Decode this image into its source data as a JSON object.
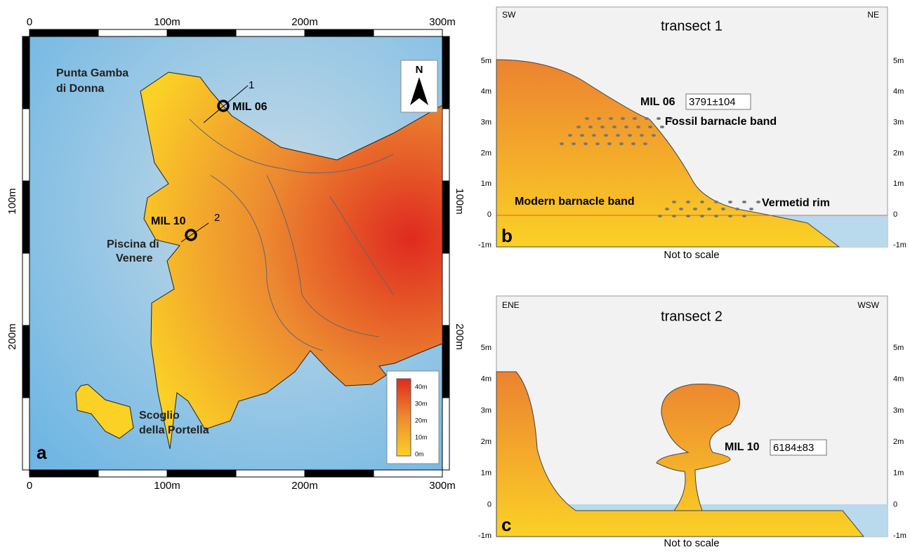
{
  "panel_a": {
    "label": "a",
    "scale_top": [
      "0",
      "100m",
      "200m",
      "300m"
    ],
    "scale_bottom": [
      "0",
      "100m",
      "200m",
      "300m"
    ],
    "scale_left": [
      "100m",
      "200m"
    ],
    "scale_right": [
      "100m",
      "200m"
    ],
    "places": {
      "punta": [
        "Punta Gamba",
        "di Donna"
      ],
      "piscina": [
        "Piscina di",
        "Venere"
      ],
      "scoglio": [
        "Scoglio",
        "della Portella"
      ]
    },
    "samples": [
      {
        "name": "MIL 06",
        "transect": "1"
      },
      {
        "name": "MIL 10",
        "transect": "2"
      }
    ],
    "north": "N",
    "legend": [
      "40m",
      "30m",
      "20m",
      "10m",
      "0m"
    ]
  },
  "panel_b": {
    "label": "b",
    "title": "transect 1",
    "left_dir": "SW",
    "right_dir": "NE",
    "yticks": [
      "5m",
      "4m",
      "3m",
      "2m",
      "1m",
      "0",
      "-1m"
    ],
    "sample": "MIL 06",
    "age": "3791±104",
    "fossil_band": "Fossil barnacle band",
    "modern_band": "Modern barnacle band",
    "vermetid": "Vermetid rim",
    "note": "Not to scale"
  },
  "panel_c": {
    "label": "c",
    "title": "transect 2",
    "left_dir": "ENE",
    "right_dir": "WSW",
    "yticks": [
      "5m",
      "4m",
      "3m",
      "2m",
      "1m",
      "0",
      "-1m"
    ],
    "sample": "MIL 10",
    "age": "6184±83",
    "note": "Not to scale"
  }
}
